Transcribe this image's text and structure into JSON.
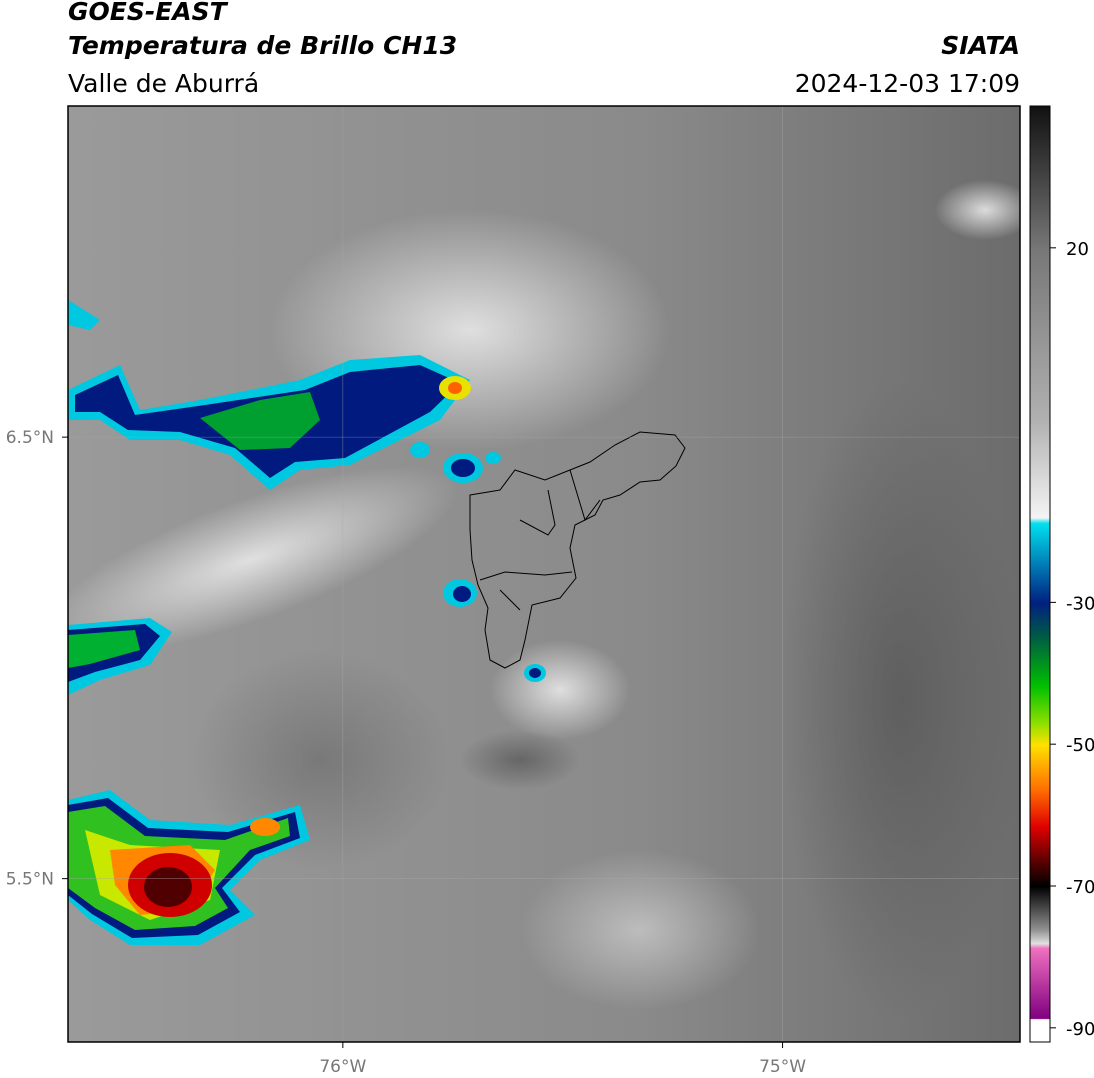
{
  "header": {
    "title": "GOES-EAST",
    "subtitle": "Temperatura de Brillo CH13",
    "region": "Valle de Aburrá",
    "source": "SIATA",
    "timestamp": "2024-12-03 17:09"
  },
  "map": {
    "xlim": [
      -76.625,
      -74.46
    ],
    "ylim": [
      5.13,
      7.25
    ],
    "xticks": [
      {
        "value": -76,
        "label": "76°W"
      },
      {
        "value": -75,
        "label": "75°W"
      }
    ],
    "yticks": [
      {
        "value": 6.5,
        "label": "6.5°N"
      },
      {
        "value": 5.5,
        "label": "5.5°N"
      }
    ]
  },
  "colorbar": {
    "lim": [
      -92,
      40
    ],
    "ticks": [
      20,
      -30,
      -50,
      -70,
      -90
    ]
  }
}
